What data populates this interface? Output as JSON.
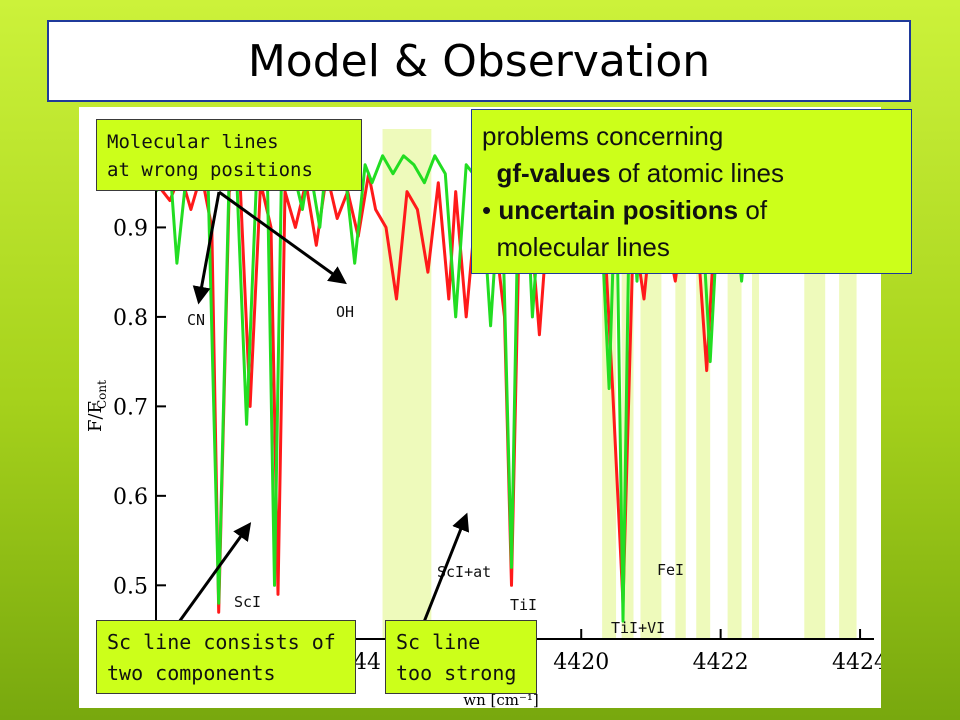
{
  "slide": {
    "title": "Model & Observation"
  },
  "callouts": {
    "molecular": [
      "Molecular lines",
      "at wrong positions"
    ],
    "two_components": [
      "Sc line consists of",
      "two components"
    ],
    "too_strong": [
      "Sc line",
      "too strong"
    ],
    "problems": {
      "line1": "problems concerning",
      "line2_bold": "gf-values",
      "line2_rest": " of atomic lines",
      "bullet": "•",
      "line3_bold": "uncertain positions",
      "line3_rest": " of",
      "line4": "molecular lines"
    }
  },
  "line_labels": [
    "CN",
    "OH",
    "ScI",
    "ScI+at",
    "TiI",
    "FeI",
    "TiI+VI"
  ],
  "colors": {
    "observed": "#22dd22",
    "model": "#ff1a1a",
    "highlight": "#eefabb",
    "callout_bg": "#ccff1a"
  },
  "chart_data": {
    "type": "line",
    "title": "",
    "xlabel": "wn [cm⁻¹]",
    "ylabel": "F/F",
    "ylabel_sub": "Cont",
    "ylim": [
      0.44,
      1.01
    ],
    "xlim": [
      4413.9,
      4424.2
    ],
    "grid": false,
    "y_ticks": [
      "0.9",
      "0.8",
      "0.7",
      "0.6",
      "0.5"
    ],
    "x_ticks": [
      "4420",
      "4422",
      "4424"
    ],
    "x_tick_partial": "44",
    "highlight_bands": [
      [
        4417.15,
        4417.85
      ],
      [
        4420.3,
        4420.5
      ],
      [
        4420.58,
        4420.75
      ],
      [
        4420.85,
        4421.15
      ],
      [
        4421.35,
        4421.5
      ],
      [
        4421.65,
        4421.85
      ],
      [
        4422.1,
        4422.3
      ],
      [
        4422.45,
        4422.55
      ],
      [
        4423.2,
        4423.5
      ],
      [
        4423.7,
        4423.95
      ]
    ],
    "series": [
      {
        "color": "green",
        "x": [
          4413.9,
          4414.1,
          4414.2,
          4414.35,
          4414.5,
          4414.65,
          4414.8,
          4414.95,
          4415.05,
          4415.2,
          4415.35,
          4415.5,
          4415.6,
          4415.7,
          4415.85,
          4416.0,
          4416.1,
          4416.25,
          4416.35,
          4416.45,
          4416.6,
          4416.75,
          4416.9,
          4417.0,
          4417.15,
          4417.3,
          4417.45,
          4417.6,
          4417.75,
          4417.9,
          4418.05,
          4418.2,
          4418.35,
          4418.45,
          4418.55,
          4418.7,
          4418.85,
          4419.0,
          4419.1,
          4419.2,
          4419.3,
          4419.45,
          4419.55,
          4419.65,
          4419.8,
          4419.95,
          4420.1,
          4420.25,
          4420.4,
          4420.5,
          4420.6,
          4420.7,
          4420.8,
          4420.9,
          4421.0,
          4421.1,
          4421.25,
          4421.4,
          4421.55,
          4421.7,
          4421.85,
          4422.0,
          4422.15,
          4422.3,
          4422.45,
          4422.6,
          4422.75,
          4422.9,
          4423.05,
          4423.2,
          4423.35,
          4423.5,
          4423.65,
          4423.8,
          4423.95,
          4424.1
        ],
        "y": [
          0.94,
          0.97,
          0.86,
          0.97,
          0.98,
          0.94,
          0.48,
          0.96,
          0.97,
          0.68,
          0.97,
          0.95,
          0.5,
          0.96,
          0.97,
          0.92,
          0.97,
          0.9,
          0.98,
          0.96,
          0.97,
          0.86,
          0.97,
          0.95,
          0.98,
          0.96,
          0.98,
          0.97,
          0.95,
          0.98,
          0.96,
          0.8,
          0.97,
          0.96,
          0.97,
          0.79,
          0.97,
          0.52,
          0.95,
          0.97,
          0.8,
          0.97,
          0.96,
          0.97,
          0.94,
          0.97,
          0.86,
          0.97,
          0.72,
          0.97,
          0.46,
          0.97,
          0.84,
          0.97,
          0.96,
          0.97,
          0.88,
          0.97,
          0.96,
          0.96,
          0.75,
          0.97,
          0.96,
          0.84,
          0.97,
          0.96,
          0.95,
          0.97,
          0.96,
          0.97,
          0.95,
          0.96,
          0.97,
          0.96,
          0.95,
          0.97
        ]
      },
      {
        "color": "red",
        "x": [
          4413.9,
          4414.1,
          4414.25,
          4414.4,
          4414.55,
          4414.7,
          4414.8,
          4414.95,
          4415.1,
          4415.25,
          4415.4,
          4415.55,
          4415.65,
          4415.75,
          4415.9,
          4416.05,
          4416.2,
          4416.35,
          4416.5,
          4416.65,
          4416.8,
          4416.95,
          4417.05,
          4417.2,
          4417.35,
          4417.5,
          4417.65,
          4417.8,
          4417.95,
          4418.1,
          4418.2,
          4418.35,
          4418.5,
          4418.6,
          4418.75,
          4418.9,
          4419.0,
          4419.1,
          4419.25,
          4419.4,
          4419.55,
          4419.7,
          4419.85,
          4420.0,
          4420.15,
          4420.3,
          4420.45,
          4420.6,
          4420.75,
          4420.9,
          4421.05,
          4421.2,
          4421.35,
          4421.5,
          4421.65,
          4421.8,
          4421.95,
          4422.1,
          4422.25,
          4422.4,
          4422.55,
          4422.7,
          4422.85,
          4423.0,
          4423.15,
          4423.3,
          4423.45,
          4423.6,
          4423.75,
          4423.9,
          4424.1
        ],
        "y": [
          0.95,
          0.93,
          0.96,
          0.92,
          0.96,
          0.9,
          0.47,
          0.94,
          0.96,
          0.7,
          0.95,
          0.9,
          0.49,
          0.94,
          0.9,
          0.95,
          0.88,
          0.96,
          0.91,
          0.94,
          0.89,
          0.96,
          0.92,
          0.9,
          0.82,
          0.94,
          0.92,
          0.85,
          0.95,
          0.82,
          0.94,
          0.8,
          0.93,
          0.89,
          0.9,
          0.8,
          0.5,
          0.86,
          0.93,
          0.78,
          0.94,
          0.9,
          0.95,
          0.88,
          0.9,
          0.94,
          0.72,
          0.48,
          0.9,
          0.82,
          0.94,
          0.9,
          0.84,
          0.93,
          0.91,
          0.74,
          0.95,
          0.9,
          0.85,
          0.94,
          0.92,
          0.89,
          0.93,
          0.88,
          0.94,
          0.91,
          0.92,
          0.94,
          0.88,
          0.93,
          0.9
        ]
      }
    ]
  }
}
